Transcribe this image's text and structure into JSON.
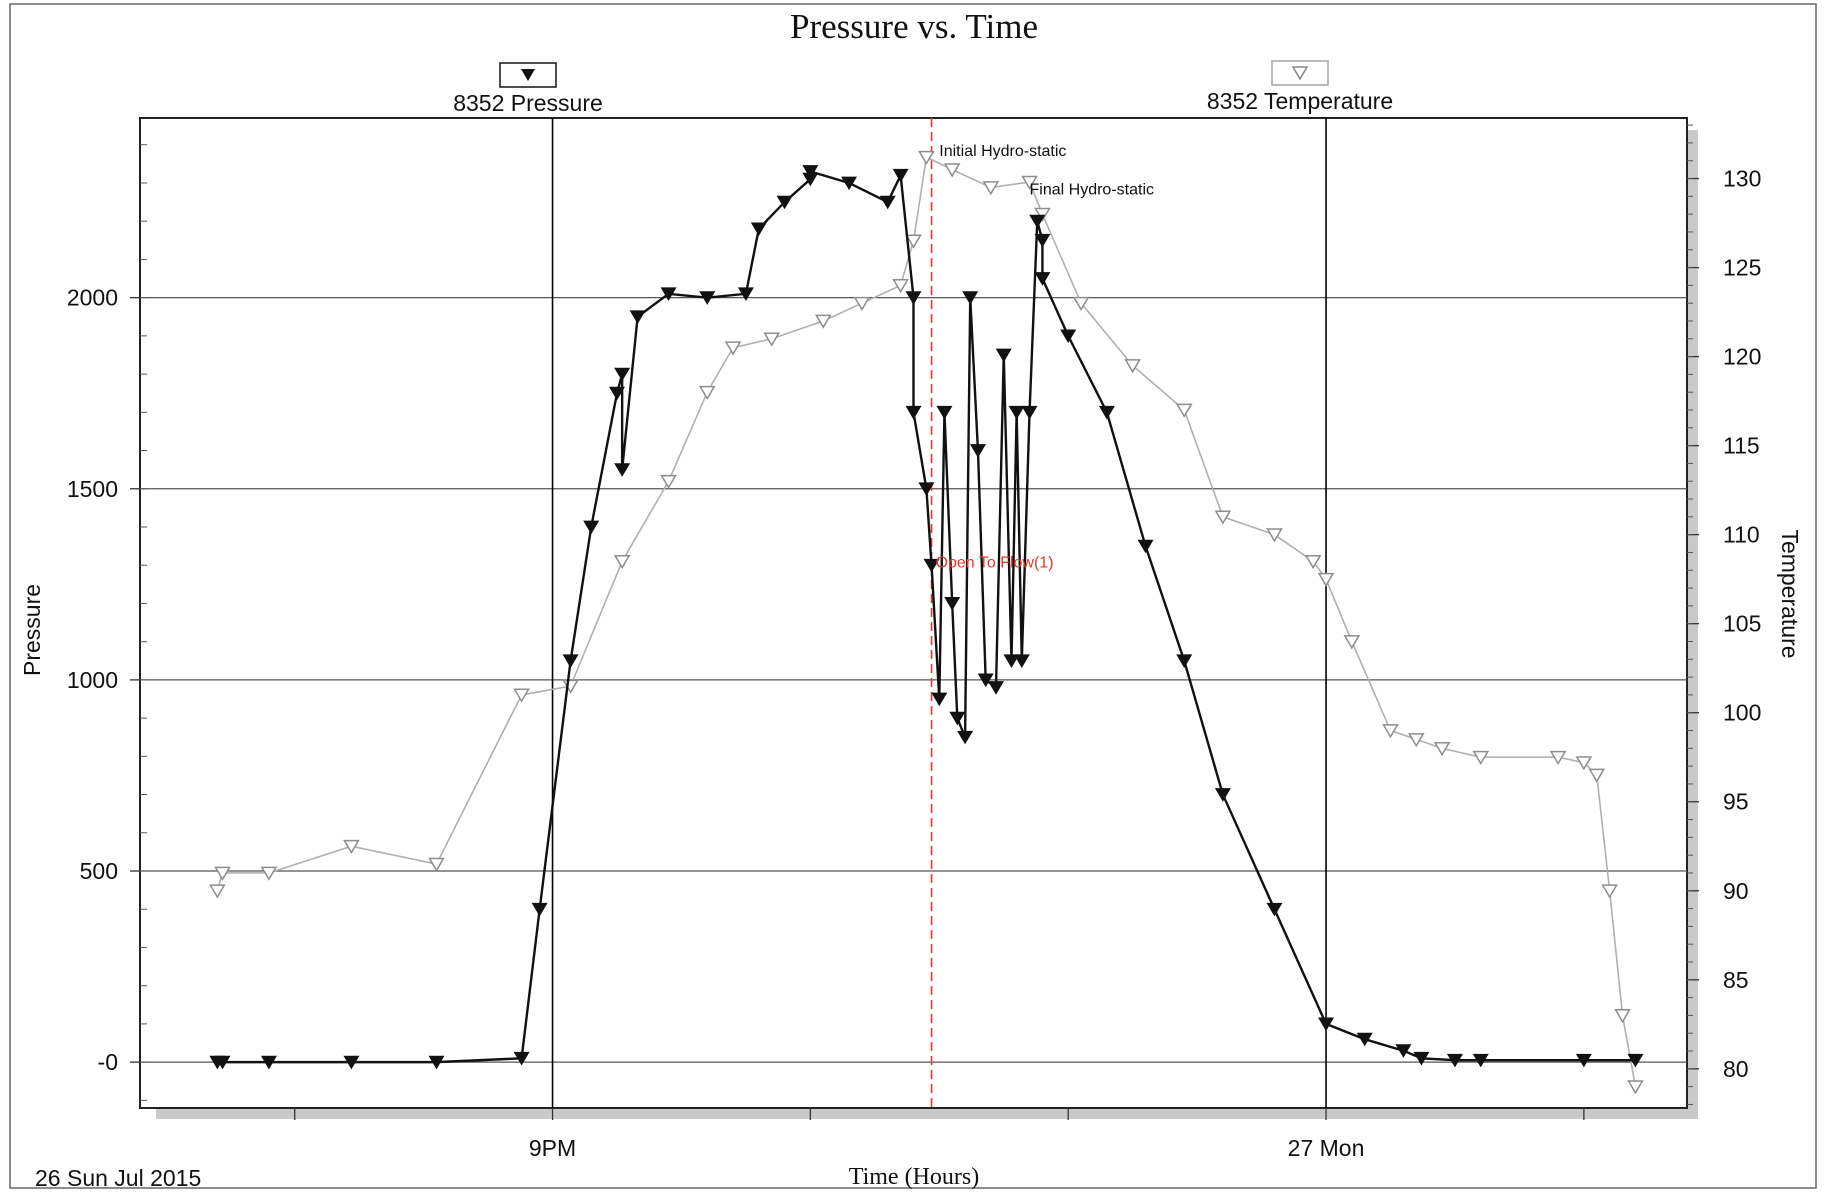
{
  "chart_data": {
    "type": "line",
    "title": "Pressure vs. Time",
    "xlabel": "Time (Hours)",
    "ylabel": "Pressure",
    "y2label": "Temperature",
    "date_label": "26 Sun Jul 2015",
    "x_tick_labels": [
      {
        "hour": 21,
        "label": "9PM"
      },
      {
        "hour": 24,
        "label": "27 Mon"
      }
    ],
    "xlim": [
      19.4,
      25.4
    ],
    "ylim": [
      -120,
      2470
    ],
    "y2lim": [
      77.8,
      133.4
    ],
    "y_ticks": [
      {
        "value": 0,
        "label": "-0"
      },
      {
        "value": 500,
        "label": "500"
      },
      {
        "value": 1000,
        "label": "1000"
      },
      {
        "value": 1500,
        "label": "1500"
      },
      {
        "value": 2000,
        "label": "2000"
      }
    ],
    "y2_ticks": [
      80,
      85,
      90,
      95,
      100,
      105,
      110,
      115,
      120,
      125,
      130
    ],
    "grid": true,
    "legend": [
      {
        "name": "8352 Pressure",
        "marker": "filled-triangle-down",
        "position": "top-left"
      },
      {
        "name": "8352 Temperature",
        "marker": "hollow-triangle-down",
        "position": "top-right"
      }
    ],
    "event_line": {
      "hour": 22.47,
      "label": "Open To Flow(1)",
      "color": "#e03a2a"
    },
    "annotations": [
      {
        "text": "Initial Hydro-static",
        "hour": 22.5,
        "value": 2370
      },
      {
        "text": "Final Hydro-static",
        "hour": 22.85,
        "value": 2270
      }
    ],
    "colors": {
      "pressure": "#111111",
      "temperature": "#9a9a9a",
      "event": "#e03a2a"
    },
    "series": [
      {
        "name": "8352 Pressure",
        "axis": "left",
        "x": [
          19.7,
          19.72,
          19.9,
          20.22,
          20.55,
          20.88,
          20.95,
          21.07,
          21.15,
          21.25,
          21.27,
          21.27,
          21.33,
          21.45,
          21.6,
          21.75,
          21.8,
          21.9,
          22.0,
          22.0,
          22.15,
          22.3,
          22.35,
          22.4,
          22.4,
          22.45,
          22.47,
          22.5,
          22.52,
          22.55,
          22.57,
          22.6,
          22.62,
          22.65,
          22.68,
          22.72,
          22.75,
          22.78,
          22.8,
          22.82,
          22.85,
          22.88,
          22.9,
          22.9,
          23.0,
          23.15,
          23.3,
          23.45,
          23.6,
          23.8,
          24.0,
          24.15,
          24.3,
          24.37,
          24.5,
          24.6,
          25.0,
          25.2
        ],
        "y": [
          0,
          0,
          0,
          0,
          0,
          10,
          400,
          1050,
          1400,
          1750,
          1800,
          1550,
          1950,
          2010,
          2000,
          2010,
          2180,
          2250,
          2310,
          2330,
          2300,
          2250,
          2320,
          2000,
          1700,
          1500,
          1300,
          950,
          1700,
          1200,
          900,
          850,
          2000,
          1600,
          1000,
          980,
          1850,
          1050,
          1700,
          1050,
          1700,
          2200,
          2150,
          2050,
          1900,
          1700,
          1350,
          1050,
          700,
          400,
          100,
          60,
          30,
          10,
          5,
          5,
          5,
          5
        ]
      },
      {
        "name": "8352 Temperature",
        "axis": "right",
        "x": [
          19.7,
          19.72,
          19.9,
          20.22,
          20.55,
          20.88,
          21.07,
          21.27,
          21.45,
          21.6,
          21.7,
          21.85,
          22.05,
          22.2,
          22.35,
          22.4,
          22.45,
          22.55,
          22.7,
          22.85,
          22.9,
          23.05,
          23.25,
          23.45,
          23.6,
          23.8,
          23.95,
          24.0,
          24.1,
          24.25,
          24.35,
          24.45,
          24.6,
          24.9,
          25.0,
          25.05,
          25.1,
          25.15,
          25.2
        ],
        "y": [
          90,
          91,
          91,
          92.5,
          91.5,
          101,
          101.5,
          108.5,
          113,
          118,
          120.5,
          121,
          122,
          123,
          124,
          126.5,
          131.2,
          130.5,
          129.5,
          129.8,
          128,
          123,
          119.5,
          117,
          111,
          110,
          108.5,
          107.5,
          104,
          99,
          98.5,
          98,
          97.5,
          97.5,
          97.2,
          96.5,
          90,
          83,
          79
        ]
      }
    ]
  }
}
